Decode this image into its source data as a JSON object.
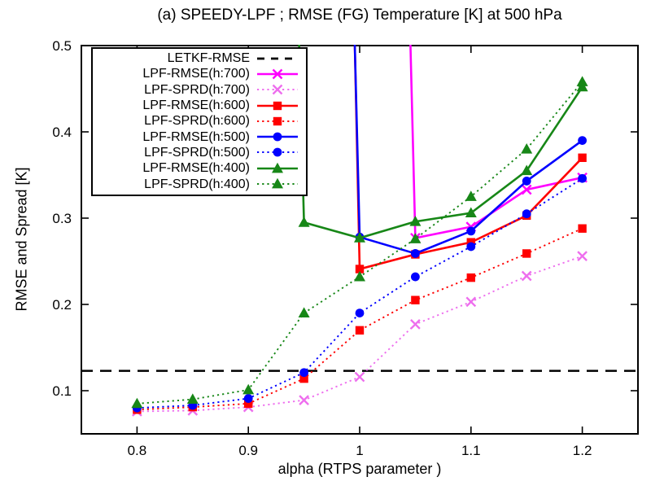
{
  "title": "(a) SPEEDY-LPF ; RMSE (FG) Temperature [K] at 500 hPa",
  "chart_data": {
    "type": "line",
    "title": "(a) SPEEDY-LPF ; RMSE (FG) Temperature [K] at 500 hPa",
    "xlabel": "alpha (RTPS parameter )",
    "ylabel": "RMSE and Spread [K]",
    "xlim": [
      0.75,
      1.25
    ],
    "ylim": [
      0.05,
      0.5
    ],
    "x_ticks": [
      {
        "v": 0.8,
        "label": "0.8"
      },
      {
        "v": 0.9,
        "label": "0.9"
      },
      {
        "v": 1.0,
        "label": "1"
      },
      {
        "v": 1.1,
        "label": "1.1"
      },
      {
        "v": 1.2,
        "label": "1.2"
      }
    ],
    "y_ticks": [
      {
        "v": 0.1,
        "label": "0.1"
      },
      {
        "v": 0.2,
        "label": "0.2"
      },
      {
        "v": 0.3,
        "label": "0.3"
      },
      {
        "v": 0.4,
        "label": "0.4"
      },
      {
        "v": 0.5,
        "label": "0.5"
      }
    ],
    "grid": false,
    "legend_position": "top-left",
    "x": [
      0.8,
      0.85,
      0.9,
      0.95,
      1.0,
      1.05,
      1.1,
      1.15,
      1.2
    ],
    "reference_line": {
      "name": "LETKF-RMSE",
      "value": 0.123,
      "color": "#000000",
      "line": "dashed",
      "marker": "none"
    },
    "series": [
      {
        "name": "LPF-RMSE(h:700)",
        "color": "#ff00ff",
        "line": "solid",
        "marker": "x",
        "values": [
          null,
          null,
          null,
          null,
          null,
          0.277,
          0.29,
          0.333,
          0.347
        ],
        "diverges_above_plot_before_first_point": true
      },
      {
        "name": "LPF-SPRD(h:700)",
        "color": "#ee6eee",
        "line": "dotted",
        "marker": "x",
        "values": [
          0.076,
          0.077,
          0.081,
          0.089,
          0.116,
          0.177,
          0.203,
          0.233,
          0.256
        ]
      },
      {
        "name": "LPF-RMSE(h:600)",
        "color": "#ff0000",
        "line": "solid",
        "marker": "square",
        "values": [
          null,
          null,
          null,
          null,
          0.241,
          0.258,
          0.272,
          0.303,
          0.37
        ],
        "diverges_above_plot_before_first_point": true
      },
      {
        "name": "LPF-SPRD(h:600)",
        "color": "#ff0000",
        "line": "dotted",
        "marker": "square",
        "values": [
          0.078,
          0.081,
          0.085,
          0.114,
          0.17,
          0.205,
          0.231,
          0.259,
          0.288
        ]
      },
      {
        "name": "LPF-RMSE(h:500)",
        "color": "#0000ff",
        "line": "solid",
        "marker": "circle",
        "values": [
          null,
          null,
          null,
          null,
          0.278,
          0.259,
          0.285,
          0.343,
          0.39
        ],
        "diverges_above_plot_before_first_point": true
      },
      {
        "name": "LPF-SPRD(h:500)",
        "color": "#0000ff",
        "line": "dotted",
        "marker": "circle",
        "values": [
          0.08,
          0.083,
          0.091,
          0.121,
          0.19,
          0.232,
          0.267,
          0.305,
          0.346
        ]
      },
      {
        "name": "LPF-RMSE(h:400)",
        "color": "#178717",
        "line": "solid",
        "marker": "triangle",
        "values": [
          null,
          null,
          null,
          0.295,
          0.277,
          0.296,
          0.306,
          0.355,
          0.452
        ],
        "diverges_above_plot_before_first_point": true
      },
      {
        "name": "LPF-SPRD(h:400)",
        "color": "#178717",
        "line": "dotted",
        "marker": "triangle",
        "values": [
          0.085,
          0.09,
          0.101,
          0.19,
          0.232,
          0.276,
          0.325,
          0.38,
          0.458
        ]
      }
    ]
  }
}
